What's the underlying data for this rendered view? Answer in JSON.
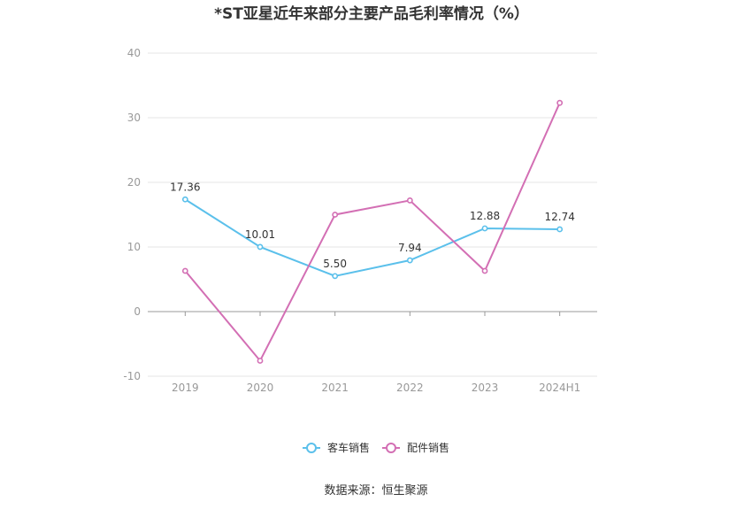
{
  "chart_data": {
    "type": "line",
    "title": "*ST亚星近年来部分主要产品毛利率情况（%）",
    "categories": [
      "2019",
      "2020",
      "2021",
      "2022",
      "2023",
      "2024H1"
    ],
    "ylim": [
      -10,
      40
    ],
    "yticks": [
      -10,
      0,
      10,
      20,
      30,
      40
    ],
    "grid": true,
    "legend_position": "bottom",
    "series": [
      {
        "name": "客车销售",
        "color": "#5bc0eb",
        "values": [
          17.36,
          10.01,
          5.5,
          7.94,
          12.88,
          12.74
        ],
        "labels": [
          "17.36",
          "10.01",
          "5.50",
          "7.94",
          "12.88",
          "12.74"
        ]
      },
      {
        "name": "配件销售",
        "color": "#d36fb4",
        "values": [
          6.3,
          -7.6,
          15.0,
          17.2,
          6.3,
          32.3
        ]
      }
    ]
  },
  "source": "数据来源：恒生聚源"
}
